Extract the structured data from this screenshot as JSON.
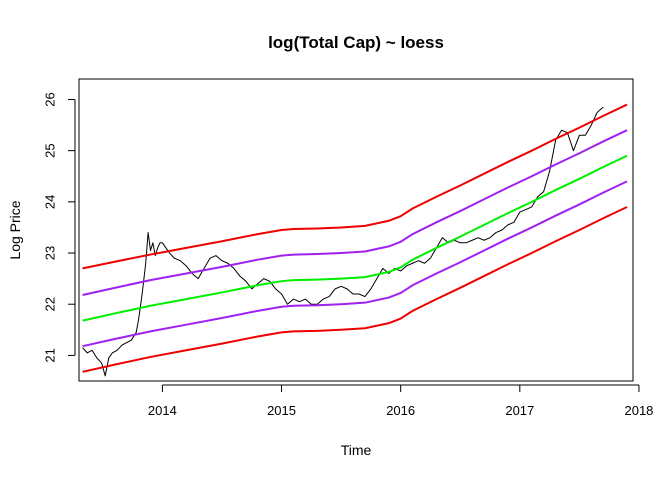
{
  "chart_data": {
    "type": "line",
    "title": "log(Total Cap) ~ loess",
    "xlabel": "Time",
    "ylabel": "Log Price",
    "xlim": [
      2013.3,
      2017.95
    ],
    "ylim": [
      20.5,
      26.4
    ],
    "xticks": [
      2014,
      2015,
      2016,
      2017,
      2018
    ],
    "yticks": [
      21,
      22,
      23,
      24,
      25,
      26
    ],
    "grid": false,
    "legend": "none",
    "series": [
      {
        "color": "#000000",
        "width": 1,
        "x": [
          2013.33,
          2013.37,
          2013.41,
          2013.45,
          2013.49,
          2013.52,
          2013.55,
          2013.58,
          2013.62,
          2013.66,
          2013.7,
          2013.74,
          2013.78,
          2013.8,
          2013.83,
          2013.86,
          2013.88,
          2013.9,
          2013.92,
          2013.94,
          2013.96,
          2013.98,
          2014.0,
          2014.03,
          2014.06,
          2014.1,
          2014.15,
          2014.2,
          2014.25,
          2014.3,
          2014.35,
          2014.4,
          2014.45,
          2014.5,
          2014.55,
          2014.6,
          2014.65,
          2014.7,
          2014.75,
          2014.8,
          2014.85,
          2014.9,
          2014.95,
          2015.0,
          2015.05,
          2015.1,
          2015.15,
          2015.2,
          2015.25,
          2015.3,
          2015.35,
          2015.4,
          2015.45,
          2015.5,
          2015.55,
          2015.6,
          2015.65,
          2015.7,
          2015.75,
          2015.8,
          2015.85,
          2015.9,
          2015.95,
          2016.0,
          2016.05,
          2016.1,
          2016.15,
          2016.2,
          2016.25,
          2016.3,
          2016.35,
          2016.4,
          2016.45,
          2016.5,
          2016.55,
          2016.6,
          2016.65,
          2016.7,
          2016.75,
          2016.8,
          2016.85,
          2016.9,
          2016.95,
          2017.0,
          2017.05,
          2017.1,
          2017.15,
          2017.2,
          2017.25,
          2017.3,
          2017.35,
          2017.4,
          2017.45,
          2017.5,
          2017.55,
          2017.6,
          2017.65,
          2017.7
        ],
        "y": [
          21.15,
          21.05,
          21.1,
          20.95,
          20.85,
          20.6,
          20.95,
          21.05,
          21.1,
          21.2,
          21.25,
          21.3,
          21.45,
          21.7,
          22.2,
          22.8,
          23.4,
          23.05,
          23.2,
          22.95,
          23.1,
          23.2,
          23.2,
          23.1,
          23.0,
          22.9,
          22.85,
          22.75,
          22.6,
          22.5,
          22.7,
          22.9,
          22.95,
          22.85,
          22.8,
          22.7,
          22.55,
          22.45,
          22.3,
          22.4,
          22.5,
          22.45,
          22.3,
          22.2,
          22.0,
          22.1,
          22.05,
          22.1,
          22.0,
          22.0,
          22.1,
          22.15,
          22.3,
          22.35,
          22.3,
          22.2,
          22.2,
          22.15,
          22.3,
          22.5,
          22.7,
          22.6,
          22.7,
          22.65,
          22.75,
          22.8,
          22.85,
          22.8,
          22.9,
          23.1,
          23.3,
          23.2,
          23.25,
          23.2,
          23.2,
          23.25,
          23.3,
          23.25,
          23.3,
          23.4,
          23.45,
          23.55,
          23.6,
          23.8,
          23.85,
          23.9,
          24.1,
          24.2,
          24.6,
          25.2,
          25.4,
          25.35,
          25.0,
          25.3,
          25.3,
          25.5,
          25.75,
          25.85
        ]
      },
      {
        "color": "#ee0000",
        "width": 2,
        "x": [
          2013.33,
          2013.6,
          2013.9,
          2014.2,
          2014.5,
          2014.8,
          2015.0,
          2015.1,
          2015.3,
          2015.5,
          2015.7,
          2015.9,
          2016.0,
          2016.1,
          2016.3,
          2016.5,
          2016.7,
          2016.9,
          2017.1,
          2017.3,
          2017.5,
          2017.7,
          2017.9
        ],
        "y": [
          22.7,
          22.83,
          22.97,
          23.1,
          23.23,
          23.37,
          23.45,
          23.47,
          23.48,
          23.5,
          23.53,
          23.63,
          23.72,
          23.87,
          24.1,
          24.32,
          24.55,
          24.78,
          25.0,
          25.23,
          25.45,
          25.68,
          25.9
        ]
      },
      {
        "color": "#a020f0",
        "width": 2,
        "x": [
          2013.33,
          2013.6,
          2013.9,
          2014.2,
          2014.5,
          2014.8,
          2015.0,
          2015.1,
          2015.3,
          2015.5,
          2015.7,
          2015.9,
          2016.0,
          2016.1,
          2016.3,
          2016.5,
          2016.7,
          2016.9,
          2017.1,
          2017.3,
          2017.5,
          2017.7,
          2017.9
        ],
        "y": [
          22.18,
          22.32,
          22.47,
          22.6,
          22.73,
          22.87,
          22.95,
          22.97,
          22.98,
          23.0,
          23.03,
          23.13,
          23.22,
          23.37,
          23.6,
          23.82,
          24.05,
          24.28,
          24.5,
          24.73,
          24.95,
          25.18,
          25.4
        ]
      },
      {
        "color": "#00ee00",
        "width": 2,
        "x": [
          2013.33,
          2013.6,
          2013.9,
          2014.2,
          2014.5,
          2014.8,
          2015.0,
          2015.1,
          2015.3,
          2015.5,
          2015.7,
          2015.9,
          2016.0,
          2016.1,
          2016.3,
          2016.5,
          2016.7,
          2016.9,
          2017.1,
          2017.3,
          2017.5,
          2017.7,
          2017.9
        ],
        "y": [
          21.68,
          21.82,
          21.97,
          22.1,
          22.23,
          22.37,
          22.45,
          22.47,
          22.48,
          22.5,
          22.53,
          22.63,
          22.72,
          22.87,
          23.1,
          23.32,
          23.55,
          23.78,
          24.0,
          24.23,
          24.45,
          24.68,
          24.9
        ]
      },
      {
        "color": "#a020f0",
        "width": 2,
        "x": [
          2013.33,
          2013.6,
          2013.9,
          2014.2,
          2014.5,
          2014.8,
          2015.0,
          2015.1,
          2015.3,
          2015.5,
          2015.7,
          2015.9,
          2016.0,
          2016.1,
          2016.3,
          2016.5,
          2016.7,
          2016.9,
          2017.1,
          2017.3,
          2017.5,
          2017.7,
          2017.9
        ],
        "y": [
          21.18,
          21.32,
          21.47,
          21.6,
          21.73,
          21.87,
          21.95,
          21.97,
          21.98,
          22.0,
          22.03,
          22.13,
          22.22,
          22.37,
          22.6,
          22.82,
          23.05,
          23.28,
          23.5,
          23.73,
          23.95,
          24.18,
          24.4
        ]
      },
      {
        "color": "#ee0000",
        "width": 2,
        "x": [
          2013.33,
          2013.6,
          2013.9,
          2014.2,
          2014.5,
          2014.8,
          2015.0,
          2015.1,
          2015.3,
          2015.5,
          2015.7,
          2015.9,
          2016.0,
          2016.1,
          2016.3,
          2016.5,
          2016.7,
          2016.9,
          2017.1,
          2017.3,
          2017.5,
          2017.7,
          2017.9
        ],
        "y": [
          20.68,
          20.82,
          20.97,
          21.1,
          21.23,
          21.37,
          21.45,
          21.47,
          21.48,
          21.5,
          21.53,
          21.63,
          21.72,
          21.87,
          22.1,
          22.32,
          22.55,
          22.78,
          23.0,
          23.23,
          23.45,
          23.68,
          23.9
        ]
      }
    ]
  }
}
